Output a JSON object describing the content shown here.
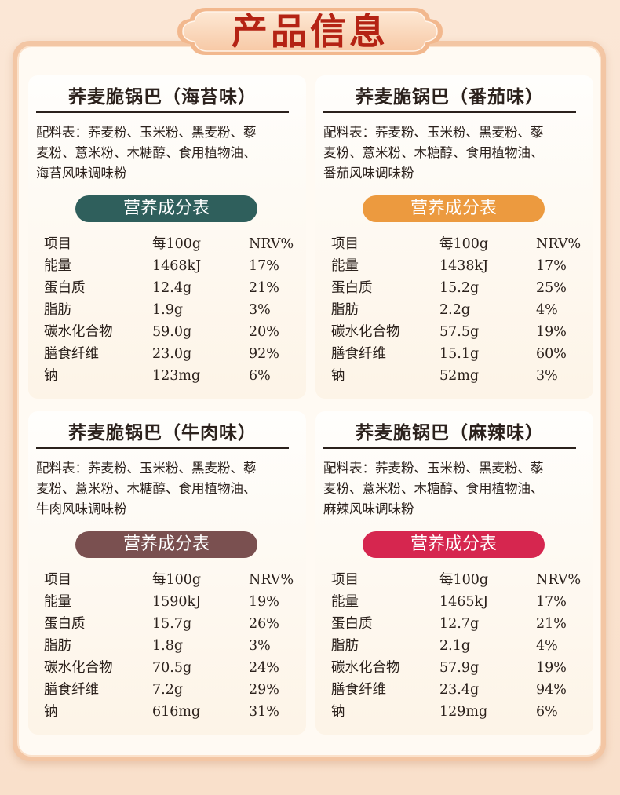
{
  "page_title": "产品信息",
  "colors": {
    "title_red": "#b42314",
    "pill_seaweed": "#2f5f5c",
    "pill_tomato": "#ec9a3f",
    "pill_beef": "#7a5050",
    "pill_spicy": "#d6264f"
  },
  "nutrition_heading": "营养成分表",
  "table_header": {
    "item": "项目",
    "per100g": "每100g",
    "nrv": "NRV%"
  },
  "products": [
    {
      "name": "荞麦脆锅巴（海苔味）",
      "ingredients": [
        "配料表：荞麦粉、玉米粉、黑麦粉、藜",
        "麦粉、薏米粉、木糖醇、食用植物油、",
        "海苔风味调味粉"
      ],
      "rows": [
        {
          "item": "能量",
          "value": "1468kJ",
          "nrv": "17%"
        },
        {
          "item": "蛋白质",
          "value": "12.4g",
          "nrv": "21%"
        },
        {
          "item": "脂肪",
          "value": "1.9g",
          "nrv": "3%"
        },
        {
          "item": "碳水化合物",
          "value": "59.0g",
          "nrv": "20%"
        },
        {
          "item": "膳食纤维",
          "value": "23.0g",
          "nrv": "92%"
        },
        {
          "item": "钠",
          "value": "123mg",
          "nrv": "6%"
        }
      ]
    },
    {
      "name": "荞麦脆锅巴（番茄味）",
      "ingredients": [
        "配料表：荞麦粉、玉米粉、黑麦粉、藜",
        "麦粉、薏米粉、木糖醇、食用植物油、",
        "番茄风味调味粉"
      ],
      "rows": [
        {
          "item": "能量",
          "value": "1438kJ",
          "nrv": "17%"
        },
        {
          "item": "蛋白质",
          "value": "15.2g",
          "nrv": "25%"
        },
        {
          "item": "脂肪",
          "value": "2.2g",
          "nrv": "4%"
        },
        {
          "item": "碳水化合物",
          "value": "57.5g",
          "nrv": "19%"
        },
        {
          "item": "膳食纤维",
          "value": "15.1g",
          "nrv": "60%"
        },
        {
          "item": "钠",
          "value": "52mg",
          "nrv": "3%"
        }
      ]
    },
    {
      "name": "荞麦脆锅巴（牛肉味）",
      "ingredients": [
        "配料表：荞麦粉、玉米粉、黑麦粉、藜",
        "麦粉、薏米粉、木糖醇、食用植物油、",
        "牛肉风味调味粉"
      ],
      "rows": [
        {
          "item": "能量",
          "value": "1590kJ",
          "nrv": "19%"
        },
        {
          "item": "蛋白质",
          "value": "15.7g",
          "nrv": "26%"
        },
        {
          "item": "脂肪",
          "value": "1.8g",
          "nrv": "3%"
        },
        {
          "item": "碳水化合物",
          "value": "70.5g",
          "nrv": "24%"
        },
        {
          "item": "膳食纤维",
          "value": "7.2g",
          "nrv": "29%"
        },
        {
          "item": "钠",
          "value": "616mg",
          "nrv": "31%"
        }
      ]
    },
    {
      "name": "荞麦脆锅巴（麻辣味）",
      "ingredients": [
        "配料表：荞麦粉、玉米粉、黑麦粉、藜",
        "麦粉、薏米粉、木糖醇、食用植物油、",
        "麻辣风味调味粉"
      ],
      "rows": [
        {
          "item": "能量",
          "value": "1465kJ",
          "nrv": "17%"
        },
        {
          "item": "蛋白质",
          "value": "12.7g",
          "nrv": "21%"
        },
        {
          "item": "脂肪",
          "value": "2.1g",
          "nrv": "4%"
        },
        {
          "item": "碳水化合物",
          "value": "57.9g",
          "nrv": "19%"
        },
        {
          "item": "膳食纤维",
          "value": "23.4g",
          "nrv": "94%"
        },
        {
          "item": "钠",
          "value": "129mg",
          "nrv": "6%"
        }
      ]
    }
  ]
}
